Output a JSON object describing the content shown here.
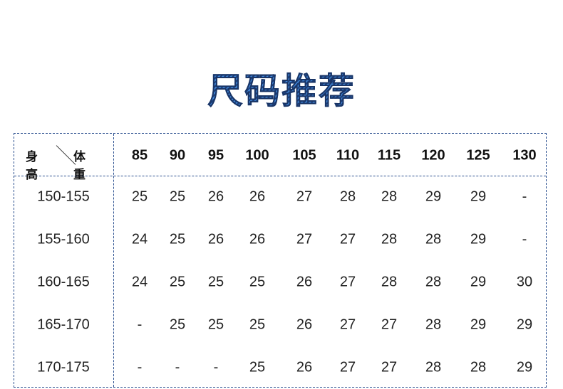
{
  "title": "尺码推荐",
  "table": {
    "corner_row_label": "身高",
    "corner_col_label": "体重",
    "weights": [
      "85",
      "90",
      "95",
      "100",
      "105",
      "110",
      "115",
      "120",
      "125",
      "130"
    ],
    "rows": [
      {
        "height": "150-155",
        "sizes": [
          "25",
          "25",
          "26",
          "26",
          "27",
          "28",
          "28",
          "29",
          "29",
          "-"
        ]
      },
      {
        "height": "155-160",
        "sizes": [
          "24",
          "25",
          "26",
          "26",
          "27",
          "27",
          "28",
          "28",
          "29",
          "-"
        ]
      },
      {
        "height": "160-165",
        "sizes": [
          "24",
          "25",
          "25",
          "25",
          "26",
          "27",
          "28",
          "28",
          "29",
          "30"
        ]
      },
      {
        "height": "165-170",
        "sizes": [
          "-",
          "25",
          "25",
          "25",
          "26",
          "27",
          "27",
          "28",
          "29",
          "29"
        ]
      },
      {
        "height": "170-175",
        "sizes": [
          "-",
          "-",
          "-",
          "25",
          "26",
          "27",
          "27",
          "28",
          "28",
          "29"
        ]
      }
    ]
  },
  "colors": {
    "title": "#2f6cc0",
    "border": "#2a4f8f"
  }
}
